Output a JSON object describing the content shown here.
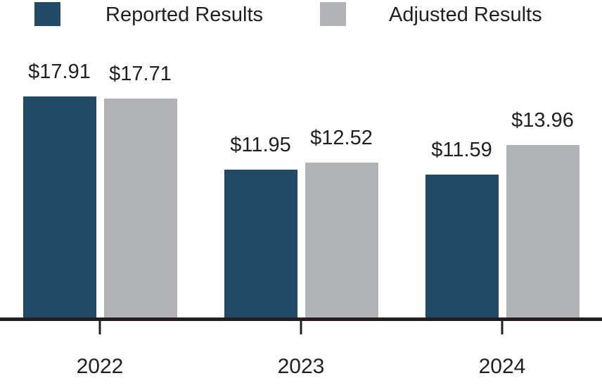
{
  "chart_data": {
    "type": "bar",
    "title": "",
    "categories": [
      "2022",
      "2023",
      "2024"
    ],
    "series": [
      {
        "name": "Reported Results",
        "color": "#224965",
        "values": [
          17.91,
          11.95,
          11.59
        ],
        "value_labels": [
          "$17.91",
          "$11.95",
          "$11.59"
        ]
      },
      {
        "name": "Adjusted Results",
        "color": "#B1B3B6",
        "values": [
          17.71,
          12.52,
          13.96
        ],
        "value_labels": [
          "$17.71",
          "$12.52",
          "$13.96"
        ]
      }
    ],
    "xlabel": "",
    "ylabel": "",
    "ylim": [
      0,
      18
    ],
    "grid": false,
    "legend_position": "top",
    "axis_color": "#231F20",
    "text_color": "#231F20",
    "background_color": "#FFFFFF"
  }
}
